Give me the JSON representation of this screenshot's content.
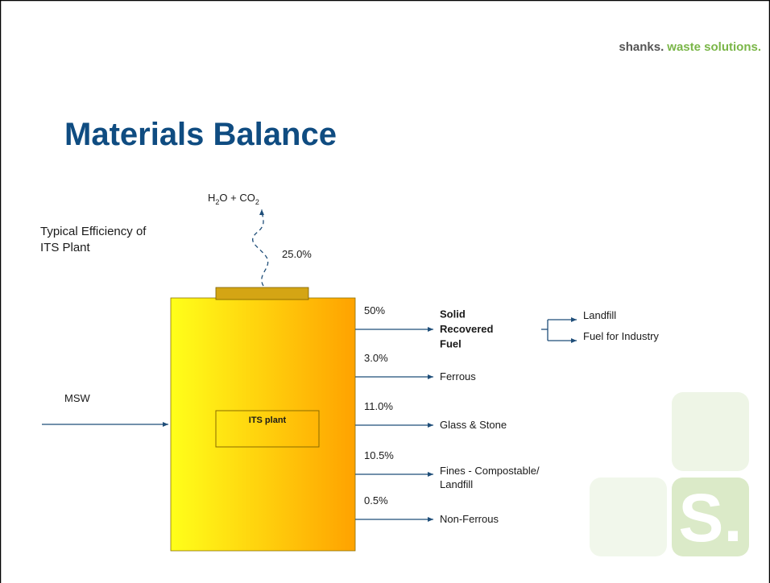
{
  "header": {
    "logo": {
      "brand": "shanks.",
      "tagline": "waste solutions."
    },
    "title": "Materials Balance"
  },
  "efficiency_note": {
    "lines": [
      "Typical Efficiency of",
      "ITS Plant"
    ]
  },
  "emission": {
    "parts": [
      "H",
      "2",
      "O + CO",
      "2"
    ],
    "share": "25.0%"
  },
  "input": {
    "label": "MSW"
  },
  "plant": {
    "label": "ITS plant"
  },
  "outputs": [
    {
      "share": "50%",
      "lines": [
        "Solid",
        "Recovered",
        "Fuel"
      ]
    },
    {
      "share": "3.0%",
      "lines": [
        "Ferrous"
      ]
    },
    {
      "share": "11.0%",
      "lines": [
        "Glass & Stone"
      ]
    },
    {
      "share": "10.5%",
      "lines": [
        "Fines - Compostable/",
        "Landfill"
      ]
    },
    {
      "share": "0.5%",
      "lines": [
        "Non-Ferrous"
      ]
    }
  ],
  "srf_split": [
    "Landfill",
    "Fuel for Industry"
  ],
  "watermark": "S."
}
